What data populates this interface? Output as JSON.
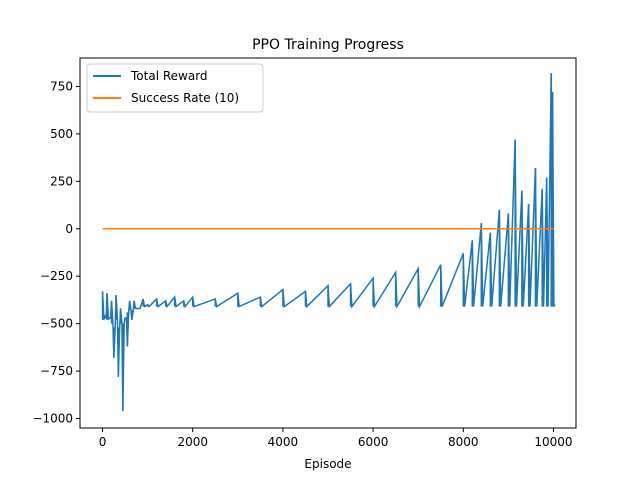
{
  "chart_data": {
    "type": "line",
    "title": "PPO Training Progress",
    "xlabel": "Episode",
    "ylabel": "",
    "xlim": [
      -500,
      10500
    ],
    "ylim": [
      -1050,
      900
    ],
    "x_ticks": [
      0,
      2000,
      4000,
      6000,
      8000,
      10000
    ],
    "y_ticks": [
      -1000,
      -750,
      -500,
      -250,
      0,
      250,
      500,
      750
    ],
    "grid": false,
    "legend_position": "top-left",
    "series": [
      {
        "name": "Total Reward",
        "color": "#1f77b4",
        "x": [
          0,
          50,
          100,
          150,
          200,
          250,
          300,
          350,
          400,
          450,
          500,
          550,
          600,
          650,
          700,
          800,
          900,
          1000,
          1200,
          1400,
          1600,
          1800,
          2000,
          2500,
          3000,
          3500,
          4000,
          4500,
          5000,
          5500,
          6000,
          6500,
          7000,
          7500,
          8000,
          8200,
          8400,
          8600,
          8800,
          9000,
          9150,
          9300,
          9450,
          9600,
          9750,
          9850,
          9950,
          9980,
          10000
        ],
        "y": [
          -330,
          -460,
          -340,
          -470,
          -380,
          -680,
          -350,
          -780,
          -420,
          -960,
          -470,
          -620,
          -380,
          -480,
          -380,
          -420,
          -370,
          -400,
          -370,
          -380,
          -360,
          -380,
          -360,
          -370,
          -340,
          -360,
          -320,
          -330,
          -300,
          -290,
          -260,
          -230,
          -210,
          -190,
          -130,
          -60,
          30,
          -20,
          100,
          80,
          470,
          200,
          130,
          320,
          210,
          270,
          820,
          720,
          -390
        ],
        "y_min": [
          -480,
          -470,
          -480,
          -470,
          -500,
          -520,
          -480,
          -520,
          -500,
          -500,
          -470,
          -440,
          -430,
          -430,
          -420,
          -420,
          -410,
          -410,
          -410,
          -410,
          -410,
          -410,
          -410,
          -410,
          -410,
          -410,
          -410,
          -410,
          -410,
          -410,
          -410,
          -410,
          -410,
          -410,
          -410,
          -410,
          -410,
          -410,
          -410,
          -410,
          -410,
          -410,
          -410,
          -410,
          -410,
          -410,
          -410,
          -410,
          -410
        ]
      },
      {
        "name": "Success Rate (10)",
        "color": "#ff7f0e",
        "x": [
          0,
          10000
        ],
        "y": [
          0,
          0
        ]
      }
    ]
  }
}
